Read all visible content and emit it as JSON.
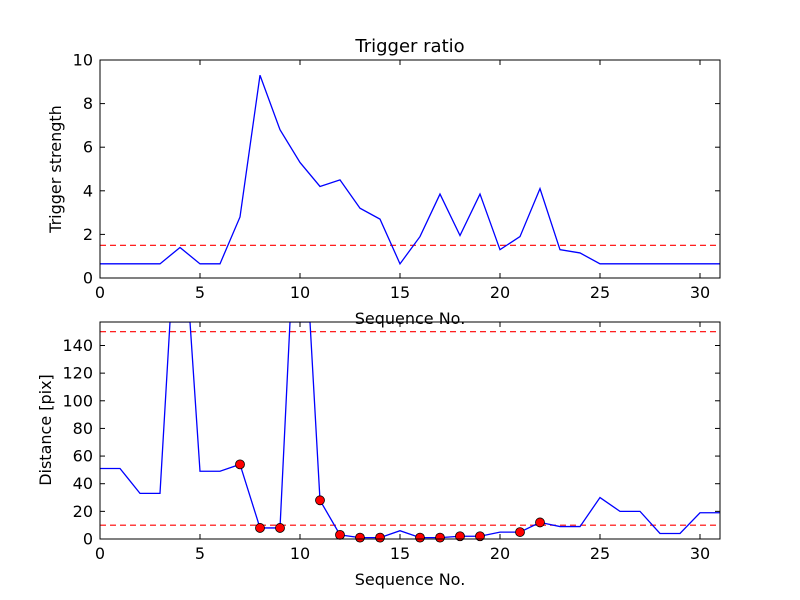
{
  "figure": {
    "background": "#ffffff"
  },
  "chart_data": [
    {
      "type": "line",
      "title": "Trigger ratio",
      "xlabel": "Sequence No.",
      "ylabel": "Trigger strength",
      "xlim": [
        0,
        31
      ],
      "ylim": [
        0,
        10
      ],
      "xticks": [
        "0",
        "5",
        "10",
        "15",
        "20",
        "25",
        "30"
      ],
      "yticks": [
        "0",
        "2",
        "4",
        "6",
        "8",
        "10"
      ],
      "grid": false,
      "series": [
        {
          "color": "#0000ff",
          "x": [
            0,
            1,
            2,
            3,
            4,
            5,
            6,
            7,
            8,
            9,
            10,
            11,
            12,
            13,
            14,
            15,
            16,
            17,
            18,
            19,
            20,
            21,
            22,
            23,
            24,
            25,
            26,
            27,
            28,
            29,
            30,
            31
          ],
          "y": [
            0.65,
            0.65,
            0.65,
            0.65,
            1.4,
            0.65,
            0.65,
            2.8,
            9.3,
            6.8,
            5.3,
            4.2,
            4.5,
            3.2,
            2.7,
            0.65,
            1.9,
            3.85,
            1.95,
            3.85,
            1.3,
            1.9,
            4.1,
            1.3,
            1.15,
            0.65,
            0.65,
            0.65,
            0.65,
            0.65,
            0.65,
            0.65
          ]
        }
      ],
      "threshold": {
        "y": 1.5,
        "color": "#ff0000"
      }
    },
    {
      "type": "line",
      "title": "",
      "xlabel": "Sequence No.",
      "ylabel": "Distance [pix]",
      "xlim": [
        0,
        31
      ],
      "ylim": [
        0,
        157
      ],
      "xticks": [
        "0",
        "5",
        "10",
        "15",
        "20",
        "25",
        "30"
      ],
      "yticks": [
        "0",
        "20",
        "40",
        "60",
        "80",
        "100",
        "120",
        "140"
      ],
      "grid": false,
      "series": [
        {
          "color": "#0000ff",
          "x": [
            0,
            1,
            2,
            3,
            3.5,
            4.5,
            5,
            6,
            7,
            8,
            9,
            9.5,
            10.5,
            11,
            12,
            13,
            14,
            15,
            16,
            17,
            18,
            19,
            20,
            21,
            22,
            23,
            24,
            25,
            26,
            27,
            28,
            29,
            30,
            31
          ],
          "y": [
            51,
            51,
            33,
            33,
            157,
            157,
            49,
            49,
            54,
            8,
            8,
            157,
            157,
            28,
            3,
            1,
            1,
            6,
            1,
            1,
            2,
            2,
            5,
            5,
            12,
            9,
            9,
            30,
            20,
            20,
            4,
            4,
            19,
            19
          ]
        }
      ],
      "markers": {
        "color": "#ff0000",
        "x": [
          7,
          8,
          9,
          11,
          12,
          13,
          14,
          16,
          17,
          18,
          19,
          21,
          22
        ],
        "y": [
          54,
          8,
          8,
          28,
          3,
          1,
          1,
          1,
          1,
          2,
          2,
          5,
          12
        ]
      },
      "thresholds": [
        {
          "y": 150,
          "color": "#ff0000"
        },
        {
          "y": 10,
          "color": "#ff0000"
        }
      ]
    }
  ]
}
